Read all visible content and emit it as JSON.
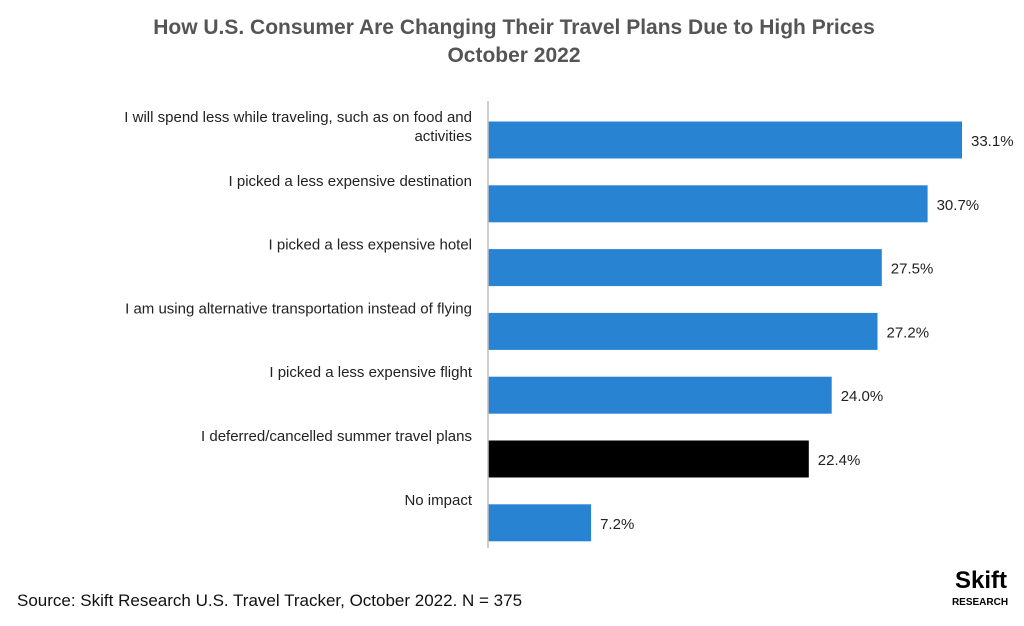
{
  "chart_data": {
    "type": "bar",
    "orientation": "horizontal",
    "title": "How U.S. Consumer Are Changing Their Travel Plans Due to High Prices",
    "subtitle": "October 2022",
    "categories": [
      [
        "I will spend less while traveling, such as on food and",
        "activities"
      ],
      [
        "I picked a less expensive destination"
      ],
      [
        "I picked a less expensive hotel"
      ],
      [
        "I am using alternative transportation instead of flying"
      ],
      [
        "I picked a less expensive flight"
      ],
      [
        "I deferred/cancelled summer travel plans"
      ],
      [
        "No impact"
      ]
    ],
    "values": [
      33.1,
      30.7,
      27.5,
      27.2,
      24.0,
      22.4,
      7.2
    ],
    "value_labels": [
      "33.1%",
      "30.7%",
      "27.5%",
      "27.2%",
      "24.0%",
      "22.4%",
      "7.2%"
    ],
    "bar_colors": [
      "#2983d3",
      "#2983d3",
      "#2983d3",
      "#2983d3",
      "#2983d3",
      "#000000",
      "#2983d3"
    ],
    "xlim": [
      0,
      35
    ],
    "grid": false,
    "legend": "none"
  },
  "footer": {
    "source": "Source: Skift Research U.S. Travel Tracker, October 2022. N =  375"
  },
  "logo": {
    "main": "Skift",
    "sub": "RESEARCH"
  },
  "colors": {
    "accent": "#2983d3",
    "highlight": "#000000",
    "axis": "#bfbfbf"
  }
}
